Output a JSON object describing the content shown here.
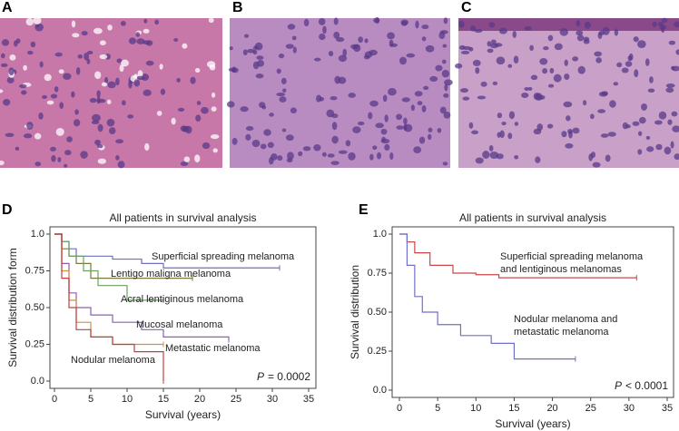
{
  "panels": {
    "labels": [
      "A",
      "B",
      "C",
      "D",
      "E"
    ]
  },
  "chart_data": [
    {
      "type": "step",
      "title": "All patients in survival analysis",
      "x_label": "Survival (years)",
      "y_label": "Survival distribution form",
      "xlim": [
        0,
        35
      ],
      "xticks": [
        0,
        5,
        10,
        15,
        20,
        25,
        30,
        35
      ],
      "ylim": [
        0,
        1
      ],
      "yticks": [
        {
          "value": 0,
          "label": "0.0"
        },
        0.25,
        {
          "value": 0.5,
          "label": "0.50"
        },
        0.75,
        {
          "value": 1,
          "label": "1.0"
        }
      ],
      "grid": false,
      "annotation": {
        "italic": "P",
        "text": "= 0.0002"
      },
      "series": [
        {
          "name": [
            "Superficial spreading melanoma"
          ],
          "color": "#6f6fc4",
          "x": [
            0,
            1,
            2,
            3,
            5,
            8,
            12,
            15,
            31
          ],
          "values": [
            1,
            0.95,
            0.9,
            0.85,
            0.85,
            0.83,
            0.8,
            0.77,
            0.77
          ]
        },
        {
          "name": [
            "Lentigo maligna melanoma"
          ],
          "color": "#7a7a3a",
          "x": [
            0,
            1,
            2,
            3,
            5,
            19
          ],
          "values": [
            1,
            0.9,
            0.85,
            0.8,
            0.7,
            0.7
          ]
        },
        {
          "name": [
            "Acral lentiginous melanoma"
          ],
          "color": "#6aa060",
          "x": [
            0,
            1,
            2,
            4,
            6,
            10,
            15
          ],
          "values": [
            1,
            0.95,
            0.85,
            0.75,
            0.65,
            0.55,
            0.55
          ]
        },
        {
          "name": [
            "Mucosal melanoma"
          ],
          "color": "#8a60b0",
          "x": [
            0,
            1,
            2,
            3,
            5,
            8,
            12,
            15,
            24
          ],
          "values": [
            1,
            0.8,
            0.6,
            0.5,
            0.45,
            0.4,
            0.35,
            0.3,
            0.28
          ]
        },
        {
          "name": [
            "Metastatic melanoma"
          ],
          "color": "#d09040",
          "x": [
            0,
            1,
            2,
            3,
            5,
            8,
            15
          ],
          "values": [
            1,
            0.75,
            0.55,
            0.4,
            0.3,
            0.25,
            0.25
          ]
        },
        {
          "name": [
            "Nodular melanoma"
          ],
          "color": "#c04040",
          "x": [
            0,
            1,
            2,
            3,
            5,
            8,
            11,
            15,
            15
          ],
          "values": [
            1,
            0.7,
            0.5,
            0.35,
            0.3,
            0.25,
            0.2,
            0.2,
            0
          ]
        }
      ]
    },
    {
      "type": "step",
      "title": "All patients in survival analysis",
      "x_label": "Survival (years)",
      "y_label": "Survival distribution",
      "xlim": [
        0,
        35
      ],
      "xticks": [
        0,
        5,
        10,
        15,
        20,
        25,
        30,
        35
      ],
      "ylim": [
        0,
        1
      ],
      "yticks": [
        {
          "value": 0,
          "label": "0.0"
        },
        0.25,
        {
          "value": 0.5,
          "label": "0.50"
        },
        0.75,
        {
          "value": 1,
          "label": "1.0"
        }
      ],
      "grid": false,
      "annotation": {
        "italic": "P",
        "text": "< 0.0001"
      },
      "series": [
        {
          "name": [
            "Superficial spreading melanoma",
            "and lentiginous melanomas"
          ],
          "color": "#c84848",
          "x": [
            0,
            1,
            2,
            4,
            7,
            10,
            13,
            31
          ],
          "values": [
            1,
            0.95,
            0.88,
            0.8,
            0.75,
            0.74,
            0.72,
            0.72
          ]
        },
        {
          "name": [
            "Nodular melanoma and",
            "metastatic melanoma"
          ],
          "color": "#7070c8",
          "x": [
            0,
            1,
            2,
            3,
            5,
            8,
            12,
            15,
            23
          ],
          "values": [
            1,
            0.8,
            0.6,
            0.5,
            0.42,
            0.35,
            0.3,
            0.2,
            0.2
          ]
        }
      ]
    }
  ]
}
